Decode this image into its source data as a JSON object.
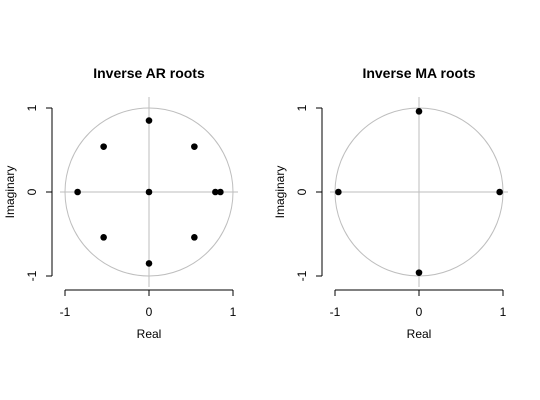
{
  "chart_data": [
    {
      "type": "scatter",
      "title": "Inverse AR roots",
      "xlabel": "Real",
      "ylabel": "Imaginary",
      "xlim": [
        -1,
        1
      ],
      "ylim": [
        -1,
        1
      ],
      "xticks": [
        "-1",
        "0",
        "1"
      ],
      "yticks": [
        "-1",
        "0",
        "1"
      ],
      "unit_circle": true,
      "points": [
        {
          "x": 0.0,
          "y": 0.85
        },
        {
          "x": -0.54,
          "y": 0.54
        },
        {
          "x": 0.54,
          "y": 0.54
        },
        {
          "x": -0.85,
          "y": 0.0
        },
        {
          "x": 0.0,
          "y": 0.0
        },
        {
          "x": 0.79,
          "y": 0.0
        },
        {
          "x": 0.85,
          "y": 0.0
        },
        {
          "x": -0.54,
          "y": -0.54
        },
        {
          "x": 0.54,
          "y": -0.54
        },
        {
          "x": 0.0,
          "y": -0.85
        }
      ]
    },
    {
      "type": "scatter",
      "title": "Inverse MA roots",
      "xlabel": "Real",
      "ylabel": "Imaginary",
      "xlim": [
        -1,
        1
      ],
      "ylim": [
        -1,
        1
      ],
      "xticks": [
        "-1",
        "0",
        "1"
      ],
      "yticks": [
        "-1",
        "0",
        "1"
      ],
      "unit_circle": true,
      "points": [
        {
          "x": 0.0,
          "y": 0.96
        },
        {
          "x": -0.96,
          "y": 0.0
        },
        {
          "x": 0.96,
          "y": 0.0
        },
        {
          "x": 0.0,
          "y": -0.96
        }
      ]
    }
  ],
  "colors": {
    "point": "#000000",
    "guide": "#bebebe",
    "axis": "#000000",
    "text": "#000000"
  }
}
